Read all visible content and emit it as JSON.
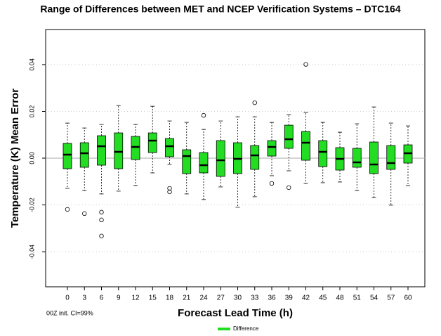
{
  "chart_data": {
    "type": "boxplot",
    "title": "Range of Differences between MET and NCEP Verification Systems – DTC164",
    "x_label": "Forecast Lead Time (h)",
    "y_label": "Temperature (K) Mean Error",
    "note": "00Z init.  CI=99%",
    "categories": [
      "0",
      "3",
      "6",
      "9",
      "12",
      "15",
      "18",
      "21",
      "24",
      "27",
      "30",
      "33",
      "36",
      "39",
      "42",
      "45",
      "48",
      "51",
      "54",
      "57",
      "60"
    ],
    "ylim": [
      -0.055,
      0.055
    ],
    "yticks": [
      -0.04,
      -0.02,
      {
        "value": 0,
        "label": "0.00"
      },
      0.02,
      0.04
    ],
    "grid": true,
    "reference_line": 0,
    "series": [
      {
        "name": "Difference",
        "color": "#22dd22",
        "boxes": [
          {
            "whisker_low": -0.0129,
            "q1": -0.0045,
            "median": 0.0015,
            "q3": 0.0063,
            "whisker_high": 0.015,
            "outliers": [
              -0.0219
            ]
          },
          {
            "whisker_low": -0.0138,
            "q1": -0.0039,
            "median": 0.0021,
            "q3": 0.0066,
            "whisker_high": 0.0129,
            "outliers": [
              -0.0237
            ]
          },
          {
            "whisker_low": -0.0153,
            "q1": -0.003,
            "median": 0.0051,
            "q3": 0.0096,
            "whisker_high": 0.0144,
            "outliers": [
              -0.0231,
              -0.0264,
              -0.0333
            ]
          },
          {
            "whisker_low": -0.0141,
            "q1": -0.0045,
            "median": 0.0027,
            "q3": 0.0108,
            "whisker_high": 0.0225,
            "outliers": []
          },
          {
            "whisker_low": -0.0117,
            "q1": -0.0006,
            "median": 0.0048,
            "q3": 0.0093,
            "whisker_high": 0.0144,
            "outliers": []
          },
          {
            "whisker_low": -0.0063,
            "q1": 0.0024,
            "median": 0.0075,
            "q3": 0.0108,
            "whisker_high": 0.0222,
            "outliers": []
          },
          {
            "whisker_low": -0.0027,
            "q1": 0.0006,
            "median": 0.0051,
            "q3": 0.0084,
            "whisker_high": 0.0159,
            "outliers": [
              -0.0129,
              -0.0144
            ]
          },
          {
            "whisker_low": -0.0153,
            "q1": -0.0066,
            "median": 0.0009,
            "q3": 0.0036,
            "whisker_high": 0.0153,
            "outliers": []
          },
          {
            "whisker_low": -0.0177,
            "q1": -0.0063,
            "median": -0.003,
            "q3": 0.0024,
            "whisker_high": 0.0123,
            "outliers": [
              0.0183
            ]
          },
          {
            "whisker_low": -0.0123,
            "q1": -0.0078,
            "median": -0.0009,
            "q3": 0.0075,
            "whisker_high": 0.0159,
            "outliers": []
          },
          {
            "whisker_low": -0.021,
            "q1": -0.0066,
            "median": -0.0003,
            "q3": 0.0066,
            "whisker_high": 0.0177,
            "outliers": []
          },
          {
            "whisker_low": -0.0165,
            "q1": -0.0048,
            "median": 0.0012,
            "q3": 0.0054,
            "whisker_high": 0.0177,
            "outliers": [
              0.0237
            ]
          },
          {
            "whisker_low": -0.0075,
            "q1": 0.0009,
            "median": 0.0048,
            "q3": 0.0075,
            "whisker_high": 0.0153,
            "outliers": [
              -0.0108
            ]
          },
          {
            "whisker_low": -0.0054,
            "q1": 0.0042,
            "median": 0.0081,
            "q3": 0.0141,
            "whisker_high": 0.0186,
            "outliers": [
              -0.0126
            ]
          },
          {
            "whisker_low": -0.0108,
            "q1": -0.0009,
            "median": 0.0066,
            "q3": 0.0114,
            "whisker_high": 0.0195,
            "outliers": [
              0.0401
            ]
          },
          {
            "whisker_low": -0.0105,
            "q1": -0.0036,
            "median": 0.0027,
            "q3": 0.0075,
            "whisker_high": 0.0153,
            "outliers": []
          },
          {
            "whisker_low": -0.0102,
            "q1": -0.0051,
            "median": -0.0003,
            "q3": 0.0045,
            "whisker_high": 0.0111,
            "outliers": []
          },
          {
            "whisker_low": -0.0138,
            "q1": -0.0039,
            "median": -0.0018,
            "q3": 0.0042,
            "whisker_high": 0.0147,
            "outliers": []
          },
          {
            "whisker_low": -0.0168,
            "q1": -0.0066,
            "median": -0.0027,
            "q3": 0.0069,
            "whisker_high": 0.0219,
            "outliers": []
          },
          {
            "whisker_low": -0.0201,
            "q1": -0.0048,
            "median": -0.0021,
            "q3": 0.0054,
            "whisker_high": 0.015,
            "outliers": []
          },
          {
            "whisker_low": -0.0117,
            "q1": -0.0021,
            "median": 0.0021,
            "q3": 0.0057,
            "whisker_high": 0.0138,
            "outliers": []
          }
        ]
      }
    ]
  }
}
